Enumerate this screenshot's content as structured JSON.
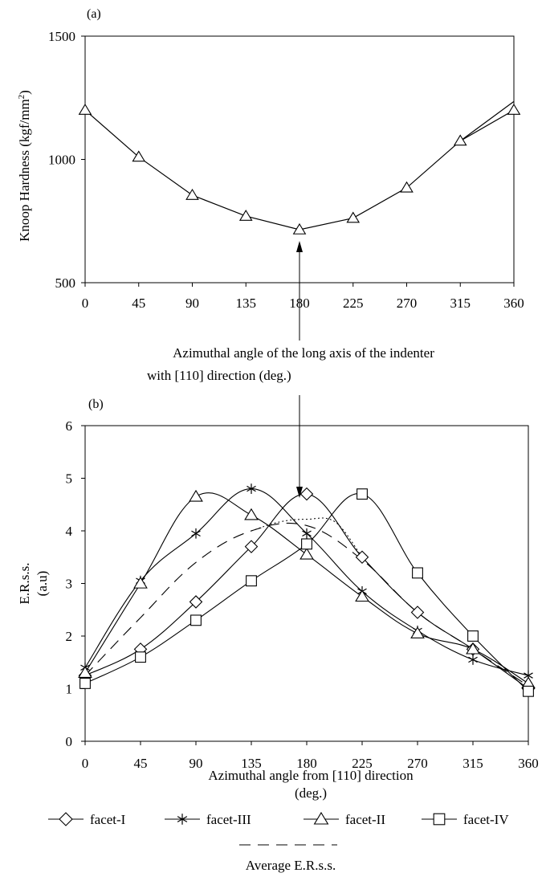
{
  "chart_data": [
    {
      "id": "a",
      "type": "line",
      "panel_label": "(a)",
      "ylabel": "Knoop Hardness (kgf/mm²)",
      "ylabel_parts": [
        "Knoop Hardness (kgf/mm",
        "2",
        ")"
      ],
      "xlabel_lines": [
        "Azimuthal angle of the long axis of the indenter",
        "with [110] direction (deg.)"
      ],
      "x_ticks": [
        0,
        45,
        90,
        135,
        180,
        225,
        270,
        315,
        360
      ],
      "y_ticks": [
        500,
        1000,
        1500
      ],
      "xlim": [
        0,
        360
      ],
      "ylim": [
        500,
        1500
      ],
      "series": [
        {
          "marker": "triangle",
          "x": [
            0,
            45,
            90,
            135,
            180,
            225,
            270,
            315,
            360
          ],
          "y": [
            1200,
            1010,
            855,
            770,
            715,
            762,
            885,
            1075,
            1200
          ]
        }
      ],
      "extra_line": {
        "x": [
          315,
          360
        ],
        "y": [
          1075,
          1235
        ]
      },
      "annotation": {
        "type": "arrow",
        "x": 180,
        "text": ""
      }
    },
    {
      "id": "b",
      "type": "line",
      "panel_label": "(b)",
      "ylabel_lines": [
        "E.R.s.s.",
        "(a.u)"
      ],
      "xlabel_lines": [
        "Azimuthal angle from [110] direction",
        "(deg.)"
      ],
      "x_ticks": [
        0,
        45,
        90,
        135,
        180,
        225,
        270,
        315,
        360
      ],
      "y_ticks": [
        0,
        1,
        2,
        3,
        4,
        5,
        6
      ],
      "xlim": [
        0,
        360
      ],
      "ylim": [
        0,
        6
      ],
      "series": [
        {
          "name": "facet-I",
          "marker": "diamond",
          "x": [
            0,
            45,
            90,
            135,
            180,
            225,
            270,
            315,
            360
          ],
          "y": [
            1.25,
            1.75,
            2.65,
            3.7,
            4.7,
            3.5,
            2.45,
            1.75,
            1.0
          ]
        },
        {
          "name": "facet-III",
          "marker": "asterisk",
          "x": [
            0,
            45,
            90,
            135,
            180,
            225,
            270,
            315,
            360
          ],
          "y": [
            1.4,
            3.05,
            3.95,
            4.8,
            3.95,
            2.85,
            2.1,
            1.55,
            1.25
          ]
        },
        {
          "name": "facet-II",
          "marker": "triangle",
          "x": [
            0,
            45,
            90,
            135,
            180,
            225,
            270,
            315,
            360
          ],
          "y": [
            1.3,
            3.0,
            4.65,
            4.3,
            3.55,
            2.75,
            2.05,
            1.75,
            1.1
          ]
        },
        {
          "name": "facet-IV",
          "marker": "square",
          "x": [
            0,
            45,
            90,
            135,
            180,
            225,
            270,
            315,
            360
          ],
          "y": [
            1.1,
            1.6,
            2.3,
            3.05,
            3.75,
            4.7,
            3.2,
            2.0,
            0.95
          ]
        },
        {
          "name": "Average E.R.s.s.",
          "marker": "none",
          "dash": "long",
          "x": [
            0,
            45,
            90,
            135,
            180,
            225,
            270,
            315,
            360
          ],
          "y": [
            1.25,
            2.35,
            3.4,
            4.0,
            4.1,
            3.45,
            2.45,
            1.75,
            1.05
          ]
        },
        {
          "marker": "none",
          "dash": "dotted",
          "x": [
            135,
            158,
            180,
            203,
            225
          ],
          "y": [
            4.0,
            4.17,
            4.22,
            4.17,
            3.5
          ]
        }
      ],
      "legend_position": "bottom"
    }
  ]
}
